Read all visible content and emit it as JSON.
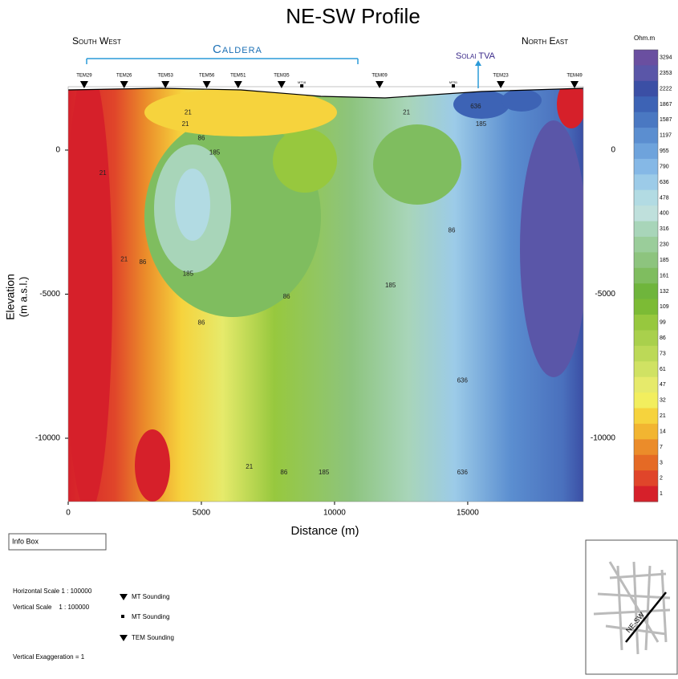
{
  "header": {
    "title": "NE-SW Profile"
  },
  "profile": {
    "xlabel": "Distance (m)",
    "ylabel": [
      "Elevation",
      "(m a.s.l.)"
    ],
    "xlim": [
      0,
      19340
    ],
    "ylim": [
      -12200,
      2200
    ],
    "xticks": [
      0,
      5000,
      10000,
      15000
    ],
    "yticks": [
      0,
      -5000,
      -10000
    ],
    "regions": {
      "south_west": "South West",
      "caldera": "Caldera",
      "solai": "Solai TVA",
      "north_east": "North East"
    },
    "stations": [
      {
        "name": "TEM29",
        "x": 600
      },
      {
        "name": "TEM26",
        "x": 2100
      },
      {
        "name": "TEM53",
        "x": 3650
      },
      {
        "name": "TEM56",
        "x": 5200
      },
      {
        "name": "TEM51",
        "x": 6380
      },
      {
        "name": "TEM35",
        "x": 8010
      },
      {
        "name": "MT16",
        "x": 8770
      },
      {
        "name": "TEM09",
        "x": 11690
      },
      {
        "name": "MT51",
        "x": 14460
      },
      {
        "name": "TEM23",
        "x": 16240
      },
      {
        "name": "TEM49",
        "x": 19010
      }
    ],
    "contour_labels": [
      {
        "value": 21,
        "x": 4500,
        "y": 1300
      },
      {
        "value": 21,
        "x": 4400,
        "y": 900
      },
      {
        "value": 21,
        "x": 1300,
        "y": -800
      },
      {
        "value": 21,
        "x": 2100,
        "y": -3800
      },
      {
        "value": 21,
        "x": 12700,
        "y": 1300
      },
      {
        "value": 86,
        "x": 5000,
        "y": 400
      },
      {
        "value": 86,
        "x": 2800,
        "y": -3900
      },
      {
        "value": 86,
        "x": 5000,
        "y": -6000
      },
      {
        "value": 86,
        "x": 8200,
        "y": -5100
      },
      {
        "value": 86,
        "x": 14400,
        "y": -2800
      },
      {
        "value": 185,
        "x": 5500,
        "y": -100
      },
      {
        "value": 185,
        "x": 4500,
        "y": -4300
      },
      {
        "value": 185,
        "x": 12100,
        "y": -4700
      },
      {
        "value": 185,
        "x": 15500,
        "y": 900
      },
      {
        "value": 636,
        "x": 15300,
        "y": 1500
      },
      {
        "value": 636,
        "x": 14800,
        "y": -8000
      },
      {
        "value": 636,
        "x": 14800,
        "y": -11200
      },
      {
        "value": 185,
        "x": 9600,
        "y": -11200
      },
      {
        "value": 86,
        "x": 8100,
        "y": -11200
      },
      {
        "value": 21,
        "x": 6800,
        "y": -11000
      }
    ]
  },
  "colorbar": {
    "unit": "Ohm.m",
    "labels": [
      3294,
      2353,
      2222,
      1867,
      1587,
      1197,
      955,
      790,
      636,
      478,
      400,
      316,
      230,
      185,
      161,
      132,
      109,
      99,
      86,
      73,
      61,
      47,
      32,
      21,
      14,
      7,
      3,
      2,
      1
    ],
    "colors": [
      "#6a4fa0",
      "#5a56a8",
      "#3b4fa5",
      "#3d63b5",
      "#4a78c2",
      "#5b8ed0",
      "#6ea3dc",
      "#85b8e6",
      "#9ccbe8",
      "#b2dbe3",
      "#bfe0dc",
      "#a8d5b9",
      "#9acd9a",
      "#8dc47e",
      "#7fbd5f",
      "#6fb53c",
      "#7cbb35",
      "#97c83e",
      "#a9d04c",
      "#bcd957",
      "#d0e263",
      "#e6ea6b",
      "#f2ee5e",
      "#f6d33d",
      "#f2b531",
      "#eb8c2a",
      "#e56a25",
      "#e0452a",
      "#d6202a"
    ]
  },
  "info_box": {
    "title": "Info Box",
    "horizontal_scale": "Horizontal Scale 1 : 100000",
    "vertical_scale": "Vertical Scale    1 : 100000",
    "exaggeration": "Vertical Exaggeration = 1"
  },
  "legend": [
    "MT Sounding",
    "MT Sounding",
    "TEM Sounding"
  ],
  "inset": {
    "label": "NE-SW"
  }
}
